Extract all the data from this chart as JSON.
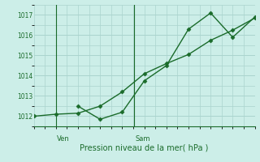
{
  "background_color": "#cceee8",
  "grid_color": "#aad4ce",
  "line_color": "#1a6b2a",
  "marker_color": "#1a6b2a",
  "title": "Pression niveau de la mer( hPa )",
  "ylim": [
    1011.5,
    1017.5
  ],
  "yticks": [
    1012,
    1013,
    1014,
    1015,
    1016,
    1017
  ],
  "line1_x": [
    0,
    1,
    2,
    3,
    4,
    5,
    6,
    7,
    8,
    9,
    10
  ],
  "line1_y": [
    1012.0,
    1012.1,
    1012.15,
    1012.5,
    1013.2,
    1014.1,
    1014.6,
    1015.05,
    1015.75,
    1016.25,
    1016.85
  ],
  "line2_x": [
    2,
    3,
    4,
    5,
    6,
    7,
    8,
    9,
    10
  ],
  "line2_y": [
    1012.5,
    1011.85,
    1012.2,
    1013.75,
    1014.5,
    1016.3,
    1017.1,
    1015.9,
    1016.9
  ],
  "ven_x": 1.0,
  "sam_x": 4.55,
  "xlim": [
    0,
    10
  ],
  "figsize": [
    3.2,
    2.0
  ],
  "dpi": 100
}
